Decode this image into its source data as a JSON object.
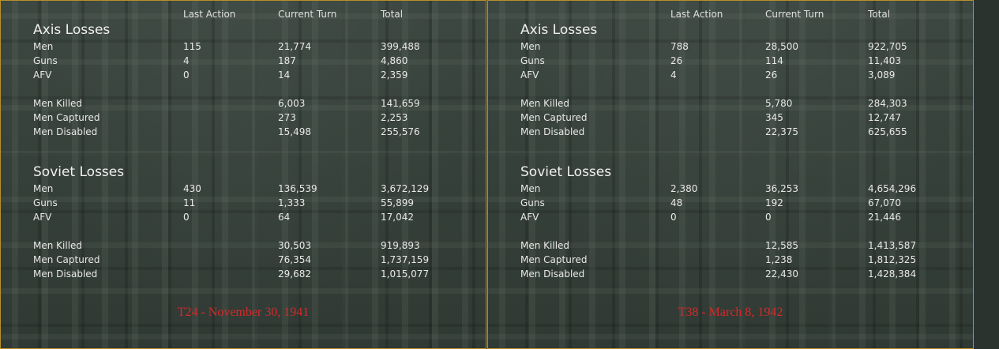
{
  "columns": {
    "last": "Last Action",
    "turn": "Current Turn",
    "total": "Total"
  },
  "panels": [
    {
      "date": "T24 - November 30, 1941",
      "axis": {
        "title": "Axis Losses",
        "rows": [
          {
            "label": "Men",
            "last": "115",
            "turn": "21,774",
            "total": "399,488"
          },
          {
            "label": "Guns",
            "last": "4",
            "turn": "187",
            "total": "4,860"
          },
          {
            "label": "AFV",
            "last": "0",
            "turn": "14",
            "total": "2,359"
          },
          {
            "label": "Men Killed",
            "last": "",
            "turn": "6,003",
            "total": "141,659"
          },
          {
            "label": "Men Captured",
            "last": "",
            "turn": "273",
            "total": "2,253"
          },
          {
            "label": "Men Disabled",
            "last": "",
            "turn": "15,498",
            "total": "255,576"
          }
        ]
      },
      "soviet": {
        "title": "Soviet Losses",
        "rows": [
          {
            "label": "Men",
            "last": "430",
            "turn": "136,539",
            "total": "3,672,129"
          },
          {
            "label": "Guns",
            "last": "11",
            "turn": "1,333",
            "total": "55,899"
          },
          {
            "label": "AFV",
            "last": "0",
            "turn": "64",
            "total": "17,042"
          },
          {
            "label": "Men Killed",
            "last": "",
            "turn": "30,503",
            "total": "919,893"
          },
          {
            "label": "Men Captured",
            "last": "",
            "turn": "76,354",
            "total": "1,737,159"
          },
          {
            "label": "Men Disabled",
            "last": "",
            "turn": "29,682",
            "total": "1,015,077"
          }
        ]
      }
    },
    {
      "date": "T38 - March 8, 1942",
      "axis": {
        "title": "Axis Losses",
        "rows": [
          {
            "label": "Men",
            "last": "788",
            "turn": "28,500",
            "total": "922,705"
          },
          {
            "label": "Guns",
            "last": "26",
            "turn": "114",
            "total": "11,403"
          },
          {
            "label": "AFV",
            "last": "4",
            "turn": "26",
            "total": "3,089"
          },
          {
            "label": "Men Killed",
            "last": "",
            "turn": "5,780",
            "total": "284,303"
          },
          {
            "label": "Men Captured",
            "last": "",
            "turn": "345",
            "total": "12,747"
          },
          {
            "label": "Men Disabled",
            "last": "",
            "turn": "22,375",
            "total": "625,655"
          }
        ]
      },
      "soviet": {
        "title": "Soviet Losses",
        "rows": [
          {
            "label": "Men",
            "last": "2,380",
            "turn": "36,253",
            "total": "4,654,296"
          },
          {
            "label": "Guns",
            "last": "48",
            "turn": "192",
            "total": "67,070"
          },
          {
            "label": "AFV",
            "last": "0",
            "turn": "0",
            "total": "21,446"
          },
          {
            "label": "Men Killed",
            "last": "",
            "turn": "12,585",
            "total": "1,413,587"
          },
          {
            "label": "Men Captured",
            "last": "",
            "turn": "1,238",
            "total": "1,812,325"
          },
          {
            "label": "Men Disabled",
            "last": "",
            "turn": "22,430",
            "total": "1,428,384"
          }
        ]
      }
    }
  ],
  "colors": {
    "border": "#b8902a",
    "date": "#d42a2a",
    "text": "#e8e8e8"
  }
}
